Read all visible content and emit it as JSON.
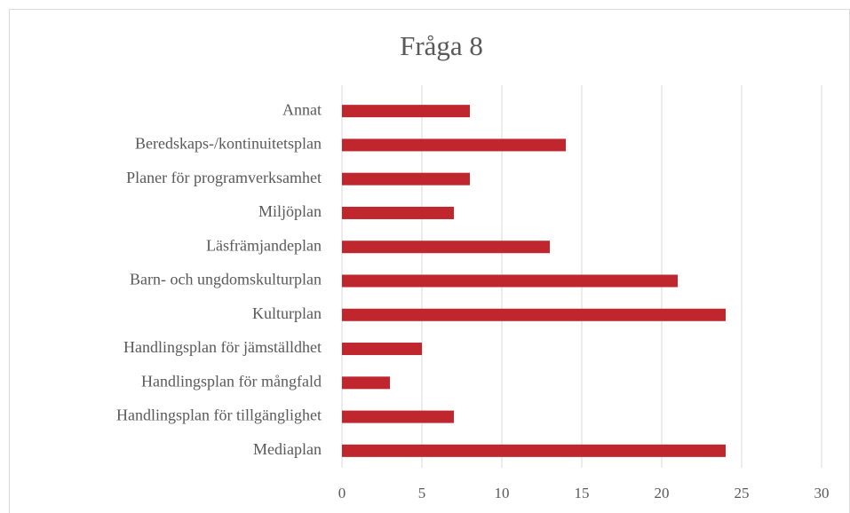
{
  "chart_data": {
    "type": "barh",
    "title": "Fråga 8",
    "categories": [
      "Annat",
      "Beredskaps-/kontinuitetsplan",
      "Planer för programverksamhet",
      "Miljöplan",
      "Läsfrämjandeplan",
      "Barn- och ungdomskulturplan",
      "Kulturplan",
      "Handlingsplan för jämställdhet",
      "Handlingsplan för mångfald",
      "Handlingsplan för tillgänglighet",
      "Mediaplan"
    ],
    "values": [
      8,
      14,
      8,
      7,
      13,
      21,
      24,
      5,
      3,
      7,
      24
    ],
    "color": "#c0262d",
    "xlim": [
      0,
      30
    ],
    "xticks": [
      0,
      5,
      10,
      15,
      20,
      25,
      30
    ],
    "grid": true
  }
}
